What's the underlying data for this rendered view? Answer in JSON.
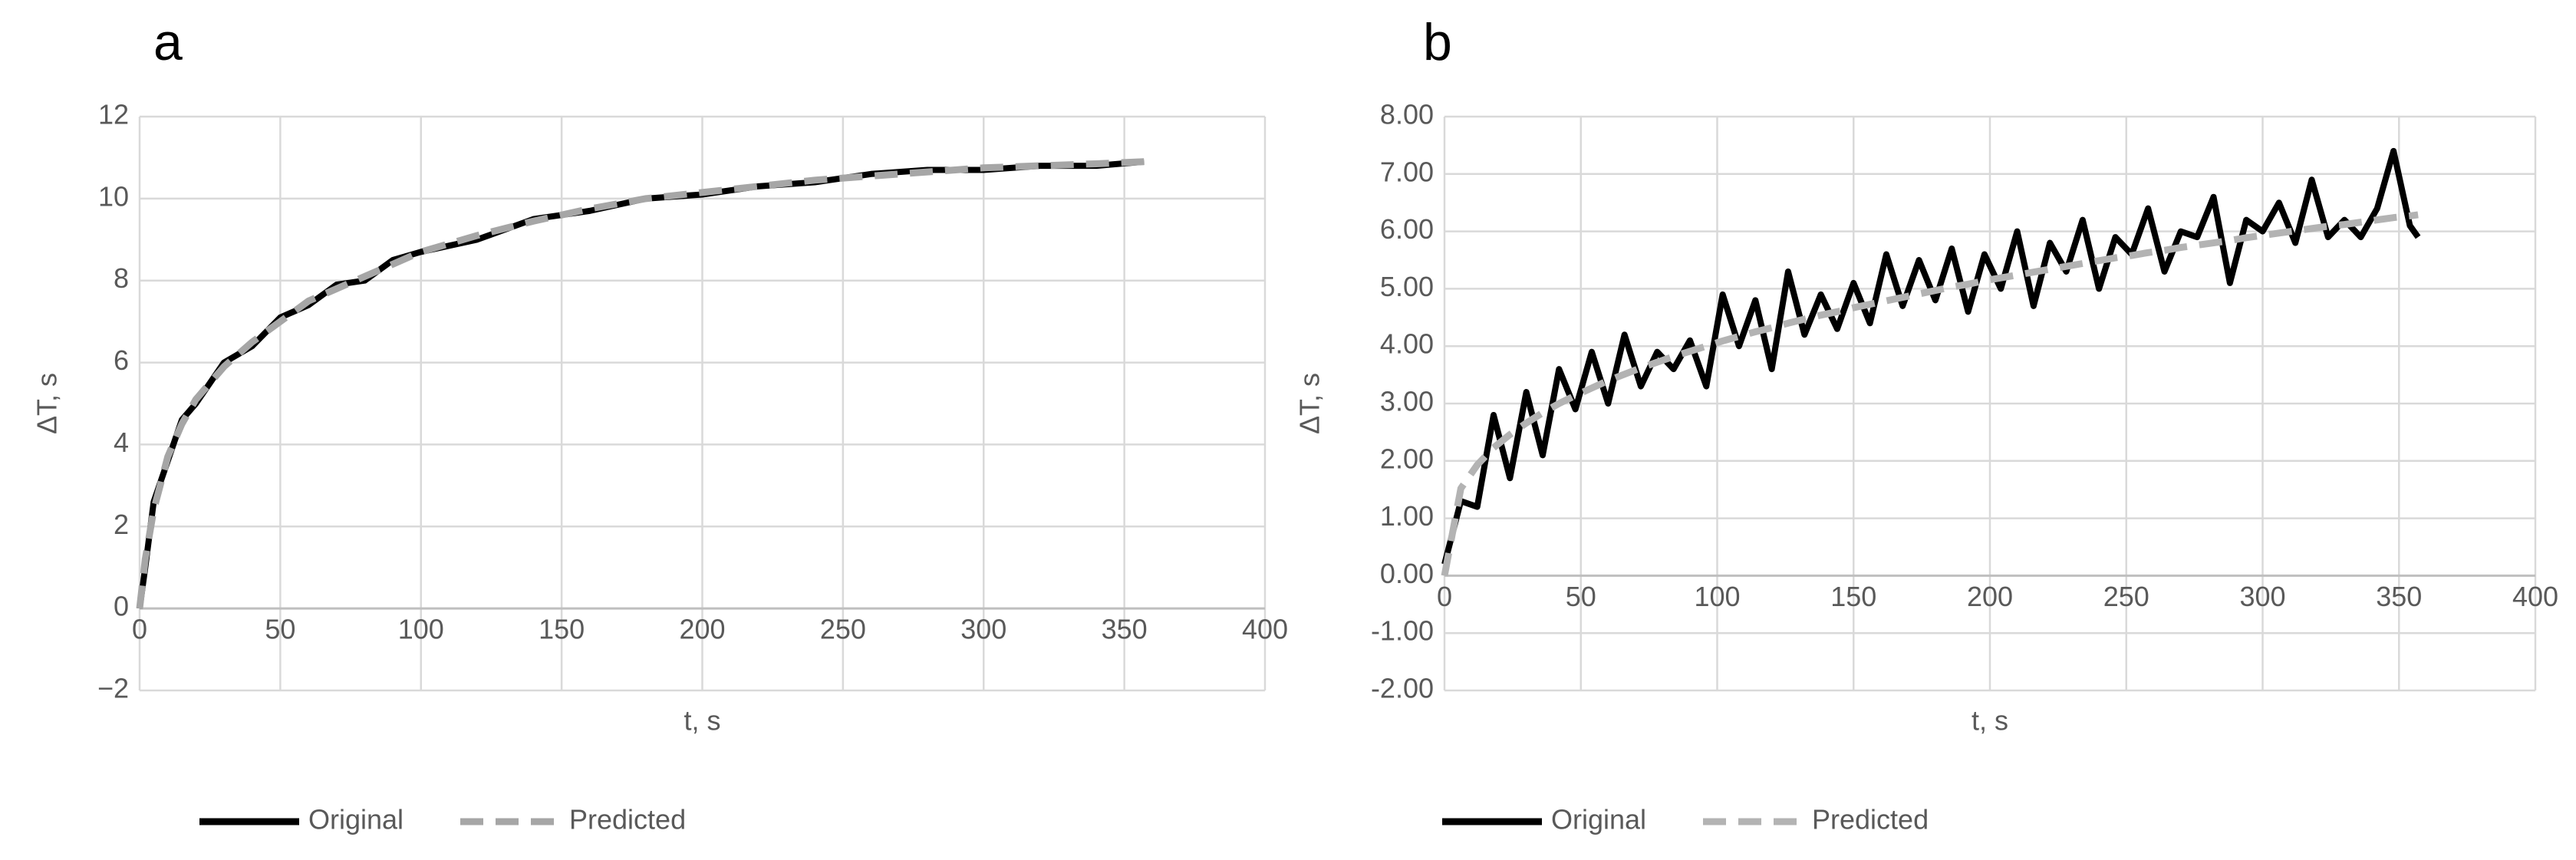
{
  "chart_data": [
    {
      "type": "line",
      "title": "a",
      "x_label": "t, s",
      "y_label": "ΔT, s",
      "x": [
        0,
        2,
        5,
        10,
        15,
        20,
        30,
        40,
        50,
        60,
        70,
        80,
        90,
        100,
        120,
        140,
        160,
        180,
        200,
        220,
        240,
        260,
        280,
        300,
        320,
        340,
        357
      ],
      "series": [
        {
          "name": "Original",
          "color": "#000000",
          "line_style": "solid",
          "values": [
            0,
            1.0,
            2.6,
            3.6,
            4.6,
            5.0,
            6.0,
            6.4,
            7.1,
            7.4,
            7.9,
            8.0,
            8.5,
            8.7,
            9.0,
            9.5,
            9.7,
            10.0,
            10.1,
            10.3,
            10.4,
            10.6,
            10.7,
            10.7,
            10.8,
            10.8,
            10.9
          ]
        },
        {
          "name": "Predicted",
          "color": "#a6a6a6",
          "line_style": "dashed",
          "values": [
            0,
            1.2,
            2.4,
            3.7,
            4.5,
            5.1,
            5.9,
            6.5,
            7.0,
            7.5,
            7.8,
            8.1,
            8.4,
            8.7,
            9.1,
            9.45,
            9.75,
            10.0,
            10.15,
            10.3,
            10.45,
            10.55,
            10.65,
            10.75,
            10.8,
            10.85,
            10.9
          ]
        }
      ],
      "xlim": [
        0,
        400
      ],
      "xticks": [
        0,
        50,
        100,
        150,
        200,
        250,
        300,
        350,
        400
      ],
      "ylim": [
        -2,
        12
      ],
      "yticks": [
        {
          "value": -2,
          "label": "−2"
        },
        0,
        2,
        4,
        6,
        8,
        10,
        12
      ],
      "grid": true,
      "legend": "bottom"
    },
    {
      "type": "line",
      "title": "b",
      "x_label": "t, s",
      "y_label": "ΔT, s",
      "x": [
        0,
        6,
        12,
        18,
        24,
        30,
        36,
        42,
        48,
        54,
        60,
        66,
        72,
        78,
        84,
        90,
        96,
        102,
        108,
        114,
        120,
        126,
        132,
        138,
        144,
        150,
        156,
        162,
        168,
        174,
        180,
        186,
        192,
        198,
        204,
        210,
        216,
        222,
        228,
        234,
        240,
        246,
        252,
        258,
        264,
        270,
        276,
        282,
        288,
        294,
        300,
        306,
        312,
        318,
        324,
        330,
        336,
        342,
        348,
        354,
        357
      ],
      "series": [
        {
          "name": "Original",
          "color": "#000000",
          "line_style": "solid",
          "values": [
            0.2,
            1.3,
            1.2,
            2.8,
            1.7,
            3.2,
            2.1,
            3.6,
            2.9,
            3.9,
            3.0,
            4.2,
            3.3,
            3.9,
            3.6,
            4.1,
            3.3,
            4.9,
            4.0,
            4.8,
            3.6,
            5.3,
            4.2,
            4.9,
            4.3,
            5.1,
            4.4,
            5.6,
            4.7,
            5.5,
            4.8,
            5.7,
            4.6,
            5.6,
            5.0,
            6.0,
            4.7,
            5.8,
            5.3,
            6.2,
            5.0,
            5.9,
            5.6,
            6.4,
            5.3,
            6.0,
            5.9,
            6.6,
            5.1,
            6.2,
            6.0,
            6.5,
            5.8,
            6.9,
            5.9,
            6.2,
            5.9,
            6.4,
            7.4,
            6.1,
            5.9
          ]
        },
        {
          "name": "Predicted",
          "color": "#b3b3b3",
          "line_style": "dashed",
          "values": [
            0,
            1.52,
            1.93,
            2.23,
            2.46,
            2.66,
            2.84,
            3.0,
            3.14,
            3.27,
            3.4,
            3.51,
            3.62,
            3.72,
            3.82,
            3.91,
            4.0,
            4.09,
            4.17,
            4.25,
            4.32,
            4.4,
            4.47,
            4.54,
            4.6,
            4.67,
            4.73,
            4.79,
            4.85,
            4.91,
            4.97,
            5.03,
            5.08,
            5.14,
            5.19,
            5.24,
            5.29,
            5.34,
            5.39,
            5.44,
            5.49,
            5.54,
            5.58,
            5.63,
            5.67,
            5.72,
            5.76,
            5.8,
            5.84,
            5.89,
            5.93,
            5.97,
            6.01,
            6.05,
            6.09,
            6.12,
            6.16,
            6.2,
            6.24,
            6.27,
            6.29
          ]
        }
      ],
      "xlim": [
        0,
        400
      ],
      "xticks": [
        0,
        50,
        100,
        150,
        200,
        250,
        300,
        350,
        400
      ],
      "ylim": [
        -2,
        8
      ],
      "yticks": [
        {
          "value": -2,
          "label": "-2.00"
        },
        {
          "value": -1,
          "label": "-1.00"
        },
        {
          "value": 0,
          "label": "0.00"
        },
        {
          "value": 1,
          "label": "1.00"
        },
        {
          "value": 2,
          "label": "2.00"
        },
        {
          "value": 3,
          "label": "3.00"
        },
        {
          "value": 4,
          "label": "4.00"
        },
        {
          "value": 5,
          "label": "5.00"
        },
        {
          "value": 6,
          "label": "6.00"
        },
        {
          "value": 7,
          "label": "7.00"
        },
        {
          "value": 8,
          "label": "8.00"
        }
      ],
      "grid": true,
      "legend": "bottom"
    }
  ]
}
